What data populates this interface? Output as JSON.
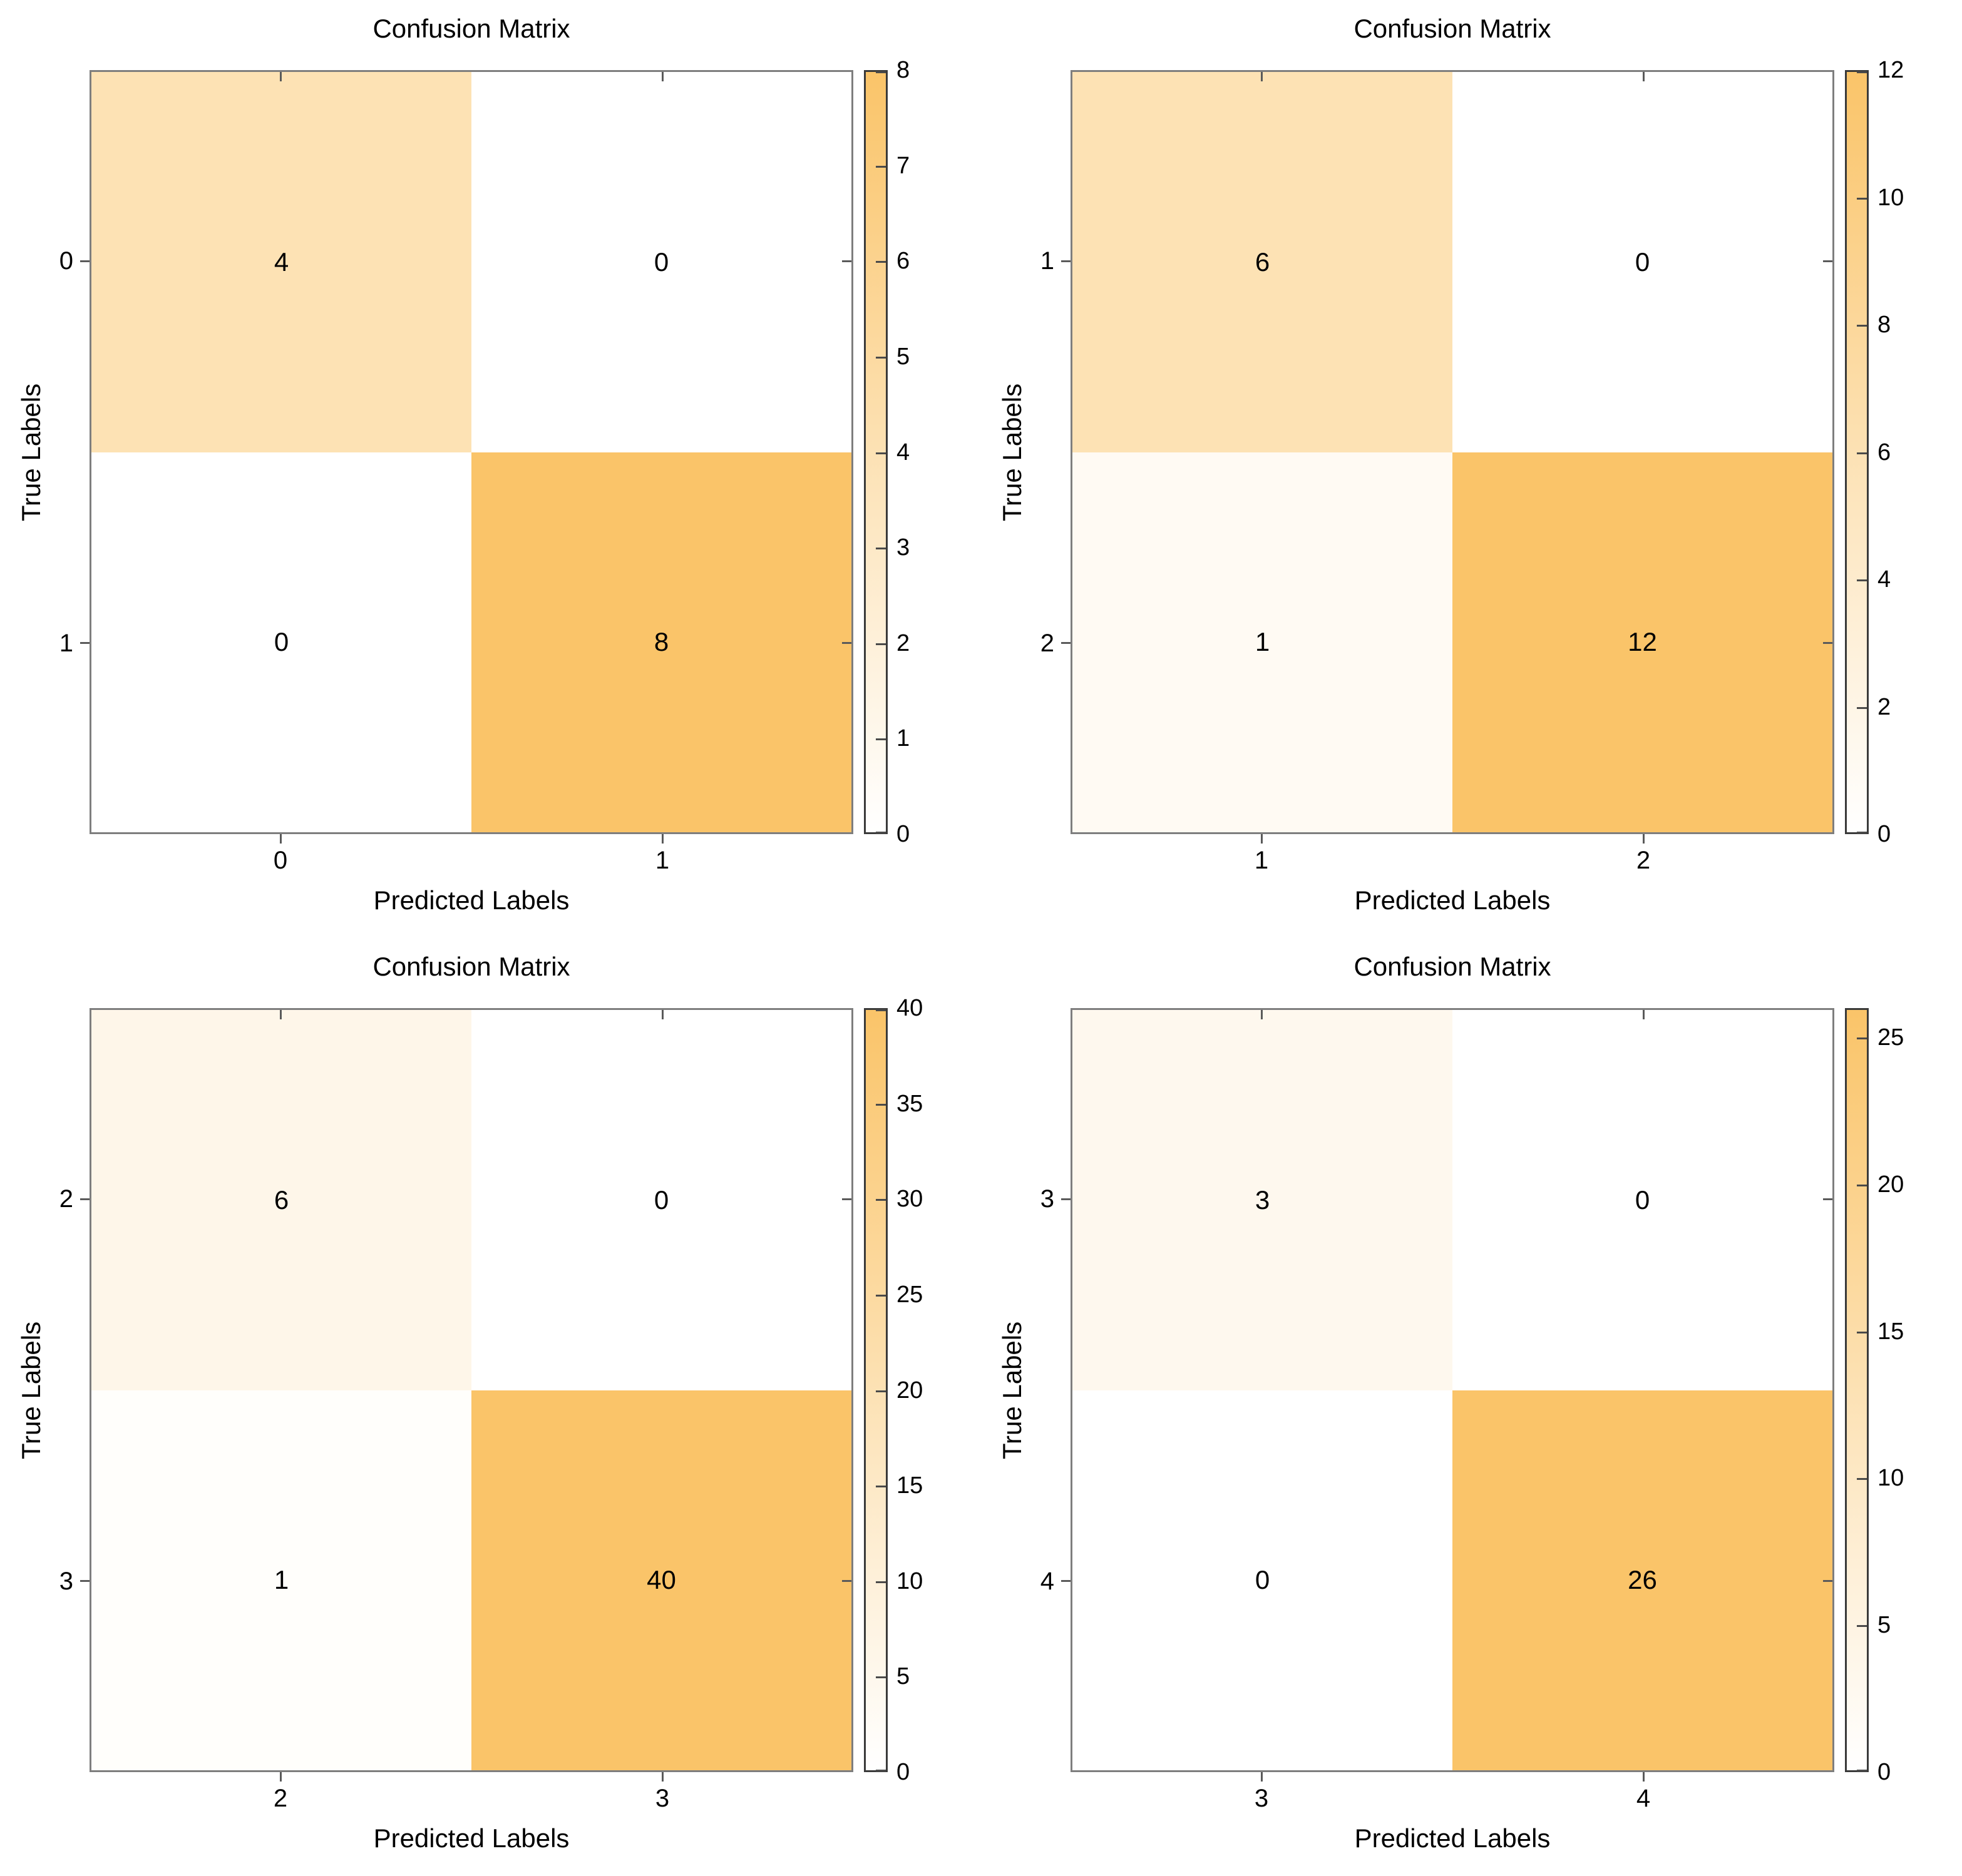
{
  "figure_background": "#FFFFFF",
  "colors": {
    "colormap_low": "#FFFFFF",
    "colormap_high": "#FAC469",
    "spine": "#7E7E7E",
    "colorbar_border": "#3A3A3A",
    "text": "#000000"
  },
  "chart_data": [
    {
      "type": "heatmap",
      "title": "Confusion Matrix",
      "xlabel": "Predicted Labels",
      "ylabel": "True Labels",
      "x_tick_labels": [
        "0",
        "1"
      ],
      "y_tick_labels": [
        "0",
        "1"
      ],
      "matrix": [
        [
          4,
          0
        ],
        [
          0,
          8
        ]
      ],
      "vmin": 0,
      "vmax": 8,
      "colorbar_ticks": [
        0,
        1,
        2,
        3,
        4,
        5,
        6,
        7,
        8
      ],
      "legend_position": "right-colorbar",
      "grid": false
    },
    {
      "type": "heatmap",
      "title": "Confusion Matrix",
      "xlabel": "Predicted Labels",
      "ylabel": "True Labels",
      "x_tick_labels": [
        "1",
        "2"
      ],
      "y_tick_labels": [
        "1",
        "2"
      ],
      "matrix": [
        [
          6,
          0
        ],
        [
          1,
          12
        ]
      ],
      "vmin": 0,
      "vmax": 12,
      "colorbar_ticks": [
        0,
        2,
        4,
        6,
        8,
        10,
        12
      ],
      "legend_position": "right-colorbar",
      "grid": false
    },
    {
      "type": "heatmap",
      "title": "Confusion Matrix",
      "xlabel": "Predicted Labels",
      "ylabel": "True Labels",
      "x_tick_labels": [
        "2",
        "3"
      ],
      "y_tick_labels": [
        "2",
        "3"
      ],
      "matrix": [
        [
          6,
          0
        ],
        [
          1,
          40
        ]
      ],
      "vmin": 0,
      "vmax": 40,
      "colorbar_ticks": [
        0,
        5,
        10,
        15,
        20,
        25,
        30,
        35,
        40
      ],
      "legend_position": "right-colorbar",
      "grid": false
    },
    {
      "type": "heatmap",
      "title": "Confusion Matrix",
      "xlabel": "Predicted Labels",
      "ylabel": "True Labels",
      "x_tick_labels": [
        "3",
        "4"
      ],
      "y_tick_labels": [
        "3",
        "4"
      ],
      "matrix": [
        [
          3,
          0
        ],
        [
          0,
          26
        ]
      ],
      "vmin": 0,
      "vmax": 26,
      "colorbar_ticks": [
        0,
        5,
        10,
        15,
        20,
        25
      ],
      "legend_position": "right-colorbar",
      "grid": false
    }
  ]
}
